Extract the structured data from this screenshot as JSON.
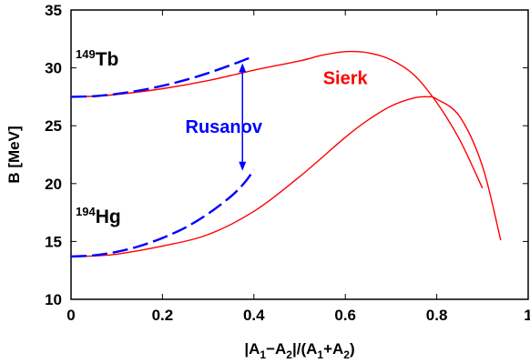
{
  "chart_data": {
    "type": "line",
    "title": "",
    "xlabel": {
      "prefix": "|A",
      "s1": "1",
      "mid": "−A",
      "s2": "2",
      "sep": "|/(A",
      "s3": "1",
      "plus": "+A",
      "s4": "2",
      "close": ")"
    },
    "ylabel": "B [MeV]",
    "xlim": [
      0,
      1
    ],
    "ylim": [
      10,
      35
    ],
    "xticks": [
      {
        "value": 0,
        "label": "0"
      },
      {
        "value": 0.2,
        "label": "0.2"
      },
      {
        "value": 0.4,
        "label": "0.4"
      },
      {
        "value": 0.6,
        "label": "0.6"
      },
      {
        "value": 0.8,
        "label": "0.8"
      },
      {
        "value": 1,
        "label": "1"
      }
    ],
    "yticks": [
      {
        "value": 10,
        "label": "10"
      },
      {
        "value": 15,
        "label": "15"
      },
      {
        "value": 20,
        "label": "20"
      },
      {
        "value": 25,
        "label": "25"
      },
      {
        "value": 30,
        "label": "30"
      },
      {
        "value": 35,
        "label": "35"
      }
    ],
    "series": [
      {
        "key": "sierk_tb",
        "color": "#ff0000",
        "style": "solid",
        "x": [
          0,
          0.05,
          0.1,
          0.2,
          0.3,
          0.4,
          0.5,
          0.55,
          0.6,
          0.65,
          0.7,
          0.75,
          0.8,
          0.85,
          0.9
        ],
        "y": [
          27.5,
          27.55,
          27.7,
          28.2,
          28.9,
          29.8,
          30.6,
          31.1,
          31.4,
          31.3,
          30.7,
          29.4,
          27.0,
          23.8,
          19.6
        ]
      },
      {
        "key": "sierk_hg",
        "color": "#ff0000",
        "style": "solid",
        "x": [
          0,
          0.05,
          0.1,
          0.2,
          0.3,
          0.4,
          0.5,
          0.6,
          0.65,
          0.7,
          0.75,
          0.78,
          0.8,
          0.85,
          0.9,
          0.94
        ],
        "y": [
          13.7,
          13.75,
          13.9,
          14.6,
          15.6,
          17.6,
          20.6,
          24.0,
          25.5,
          26.7,
          27.4,
          27.5,
          27.3,
          25.8,
          21.5,
          15.1
        ]
      },
      {
        "key": "rusanov_tb",
        "color": "#0000ff",
        "style": "dashed",
        "x": [
          0,
          0.05,
          0.1,
          0.15,
          0.2,
          0.25,
          0.3,
          0.35,
          0.38,
          0.4
        ],
        "y": [
          27.5,
          27.55,
          27.75,
          28.05,
          28.45,
          28.95,
          29.55,
          30.25,
          30.7,
          31.0
        ]
      },
      {
        "key": "rusanov_hg",
        "color": "#0000ff",
        "style": "dashed",
        "x": [
          0,
          0.05,
          0.1,
          0.15,
          0.2,
          0.25,
          0.3,
          0.35,
          0.38,
          0.4
        ],
        "y": [
          13.7,
          13.8,
          14.1,
          14.6,
          15.3,
          16.2,
          17.4,
          18.9,
          20.1,
          21.2
        ]
      }
    ],
    "annotations": {
      "tb": {
        "mass": "149",
        "symbol": "Tb",
        "x": 0.01,
        "y": 30.2
      },
      "hg": {
        "mass": "194",
        "symbol": "Hg",
        "x": 0.01,
        "y": 16.6
      },
      "sierk": {
        "text": "Sierk",
        "x": 0.6,
        "y": 28.6
      },
      "rusanov": {
        "text": "Rusanov",
        "x": 0.25,
        "y": 24.4
      },
      "arrow": {
        "x": 0.375,
        "y_top": 30.4,
        "y_bottom": 21.1,
        "color": "#0000ff"
      }
    }
  }
}
